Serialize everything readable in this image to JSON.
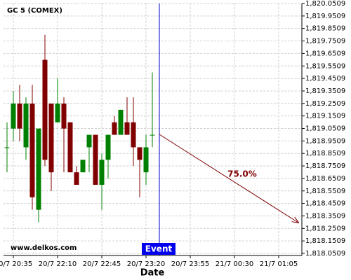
{
  "chart_data": {
    "type": "candlestick",
    "title": "GC 5 (COMEX)",
    "x_label": "Date",
    "watermark": "www.delkos.com",
    "event_label": "Event",
    "annotation": "75.0%",
    "up_color": "#008000",
    "down_color": "#800000",
    "grid": true,
    "categories": [
      null,
      "20/7 20:35",
      null,
      null,
      null,
      null,
      null,
      null,
      "20/7 22:10",
      null,
      null,
      null,
      null,
      null,
      null,
      "20/7 22:45",
      null,
      null,
      null,
      null,
      null,
      null,
      "20/7 23:20",
      null,
      null,
      null,
      null,
      null,
      null,
      "20/7 23:55",
      null,
      null,
      null,
      null,
      null,
      null,
      "21/7 00:30",
      null,
      null,
      null,
      null,
      null,
      null,
      "21/7 01:05",
      null,
      null,
      null
    ],
    "open": [
      1818.9,
      1819.05,
      1819.25,
      1818.9,
      1819.25,
      1818.4,
      1819.6,
      1819.25,
      1819.1,
      1819.25,
      1819.1,
      1818.7,
      1818.7,
      1818.9,
      1819.0,
      1818.6,
      1818.8,
      1819.1,
      1819.0,
      1819.1,
      1819.1,
      1818.9,
      1818.7,
      1819.0,
      null,
      null,
      null,
      null,
      null,
      null,
      null,
      null,
      null,
      null,
      null,
      null,
      null,
      null,
      null,
      null,
      null,
      null,
      null,
      null,
      null,
      null,
      null
    ],
    "high": [
      1819.1,
      1819.35,
      1819.4,
      1819.3,
      1819.4,
      1819.05,
      1819.8,
      1819.25,
      1819.45,
      1819.3,
      1819.1,
      1818.75,
      1818.8,
      1819.0,
      1819.0,
      1818.85,
      1819.0,
      1819.15,
      1819.2,
      1819.3,
      1819.3,
      1818.9,
      1819.0,
      1819.5,
      null,
      null,
      null,
      null,
      null,
      null,
      null,
      null,
      null,
      null,
      null,
      null,
      null,
      null,
      null,
      null,
      null,
      null,
      null,
      null,
      null,
      null,
      null
    ],
    "low": [
      1818.7,
      1818.95,
      1818.95,
      1818.8,
      1818.4,
      1818.3,
      1818.75,
      1818.55,
      1819.1,
      1818.7,
      1818.7,
      1818.6,
      1818.7,
      1818.7,
      1818.6,
      1818.4,
      1818.65,
      1819.0,
      1819.0,
      1819.0,
      1818.75,
      1818.5,
      1818.6,
      1818.9,
      null,
      null,
      null,
      null,
      null,
      null,
      null,
      null,
      null,
      null,
      null,
      null,
      null,
      null,
      null,
      null,
      null,
      null,
      null,
      null,
      null,
      null,
      null
    ],
    "close": [
      1818.9,
      1819.25,
      1819.05,
      1819.25,
      1818.5,
      1819.05,
      1818.8,
      1818.7,
      1819.25,
      1819.05,
      1818.7,
      1818.6,
      1818.8,
      1819.0,
      1818.6,
      1818.8,
      1819.0,
      1819.0,
      1819.2,
      1819.0,
      1818.9,
      1818.8,
      1818.9,
      1819.0,
      null,
      null,
      null,
      null,
      null,
      null,
      null,
      null,
      null,
      null,
      null,
      null,
      null,
      null,
      null,
      null,
      null,
      null,
      null,
      null,
      null,
      null,
      null
    ],
    "ylim": [
      1818.0509,
      1820.0509
    ],
    "yticks": [
      {
        "value": 1818.0509,
        "label": "1,818.0509"
      },
      {
        "value": 1818.1509,
        "label": "1,818.1509"
      },
      {
        "value": 1818.2509,
        "label": "1,818.2509"
      },
      {
        "value": 1818.3509,
        "label": "1,818.3509"
      },
      {
        "value": 1818.4509,
        "label": "1,818.4509"
      },
      {
        "value": 1818.5509,
        "label": "1,818.5509"
      },
      {
        "value": 1818.6509,
        "label": "1,818.6509"
      },
      {
        "value": 1818.7509,
        "label": "1,818.7509"
      },
      {
        "value": 1818.8509,
        "label": "1,818.8509"
      },
      {
        "value": 1818.9509,
        "label": "1,818.9509"
      },
      {
        "value": 1819.0509,
        "label": "1,819.0509"
      },
      {
        "value": 1819.1509,
        "label": "1,819.1509"
      },
      {
        "value": 1819.2509,
        "label": "1,819.2509"
      },
      {
        "value": 1819.3509,
        "label": "1,819.3509"
      },
      {
        "value": 1819.4509,
        "label": "1,819.4509"
      },
      {
        "value": 1819.5509,
        "label": "1,819.5509"
      },
      {
        "value": 1819.6509,
        "label": "1,819.6509"
      },
      {
        "value": 1819.7509,
        "label": "1,819.7509"
      },
      {
        "value": 1819.8509,
        "label": "1,819.8509"
      },
      {
        "value": 1819.9509,
        "label": "1,819.9509"
      },
      {
        "value": 1820.0509,
        "label": "1,820.0509"
      }
    ]
  }
}
